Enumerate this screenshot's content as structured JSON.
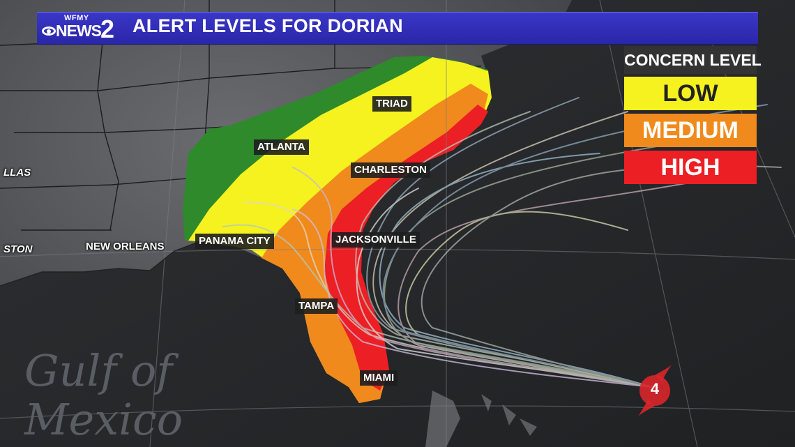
{
  "header": {
    "station": "WFMY",
    "network": "NEWS",
    "channel": "2",
    "title": "ALERT LEVELS FOR DORIAN"
  },
  "legend": {
    "title": "CONCERN LEVEL",
    "items": [
      {
        "label": "LOW",
        "color": "#f5f21f"
      },
      {
        "label": "MEDIUM",
        "color": "#f08a1c"
      },
      {
        "label": "HIGH",
        "color": "#ec1f24"
      }
    ]
  },
  "cities": [
    {
      "name": "TRIAD"
    },
    {
      "name": "ATLANTA"
    },
    {
      "name": "CHARLESTON"
    },
    {
      "name": "PANAMA CITY"
    },
    {
      "name": "JACKSONVILLE"
    },
    {
      "name": "NEW ORLEANS"
    },
    {
      "name": "TAMPA"
    },
    {
      "name": "MIAMI"
    },
    {
      "name": "LLAS"
    },
    {
      "name": "STON"
    }
  ],
  "water_label": {
    "line1": "Gulf of",
    "line2": "Mexico"
  },
  "storm": {
    "category": "4",
    "color": "#d9262b",
    "icon": "hurricane-icon"
  },
  "colors": {
    "outer_zone": "#2f8a2c",
    "background": "#2a2c2f"
  }
}
